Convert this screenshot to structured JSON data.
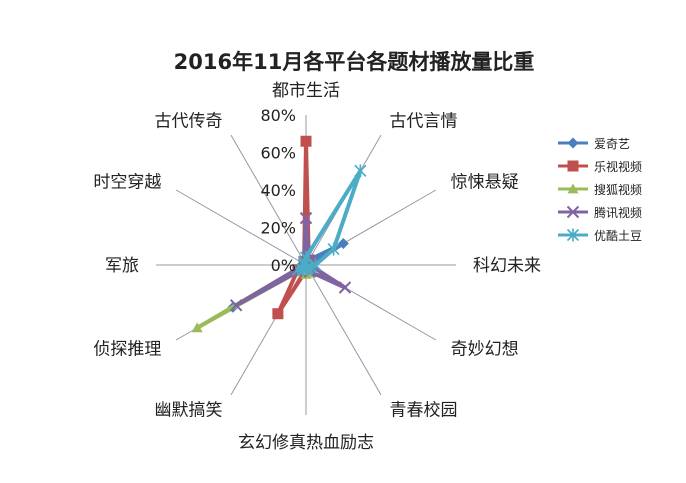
{
  "chart_data": {
    "type": "radar",
    "title": "2016年11月各平台各题材播放量比重",
    "categories": [
      "都市生活",
      "古代言情",
      "惊悚悬疑",
      "科幻未来",
      "奇妙幻想",
      "青春校园",
      "玄幻修真热血励志",
      "幽默搞笑",
      "侦探推理",
      "军旅",
      "时空穿越",
      "古代传奇"
    ],
    "radial_ticks": [
      "0%",
      "20%",
      "40%",
      "60%",
      "80%"
    ],
    "radial_tick_values": [
      0,
      20,
      40,
      60,
      80
    ],
    "rmax": 80,
    "grid": false,
    "legend_position": "right",
    "series": [
      {
        "name": "爱奇艺",
        "color": "#4a7ebf",
        "marker": "diamond",
        "values": [
          3,
          3,
          23,
          2,
          2,
          1,
          1,
          2,
          45,
          1,
          1,
          2
        ]
      },
      {
        "name": "乐视视频",
        "color": "#c0504d",
        "marker": "square",
        "values": [
          66,
          3,
          2,
          2,
          2,
          1,
          3,
          30,
          5,
          1,
          1,
          2
        ]
      },
      {
        "name": "搜狐视频",
        "color": "#9bbb59",
        "marker": "triangle",
        "values": [
          3,
          3,
          2,
          2,
          2,
          5,
          5,
          2,
          67,
          1,
          1,
          2
        ]
      },
      {
        "name": "腾讯视频",
        "color": "#8064a2",
        "marker": "x",
        "values": [
          25,
          3,
          3,
          2,
          24,
          4,
          2,
          2,
          43,
          1,
          1,
          2
        ]
      },
      {
        "name": "优酷土豆",
        "color": "#4bacc6",
        "marker": "star",
        "values": [
          4,
          58,
          17,
          5,
          3,
          2,
          2,
          3,
          5,
          1,
          1,
          2
        ]
      }
    ]
  }
}
